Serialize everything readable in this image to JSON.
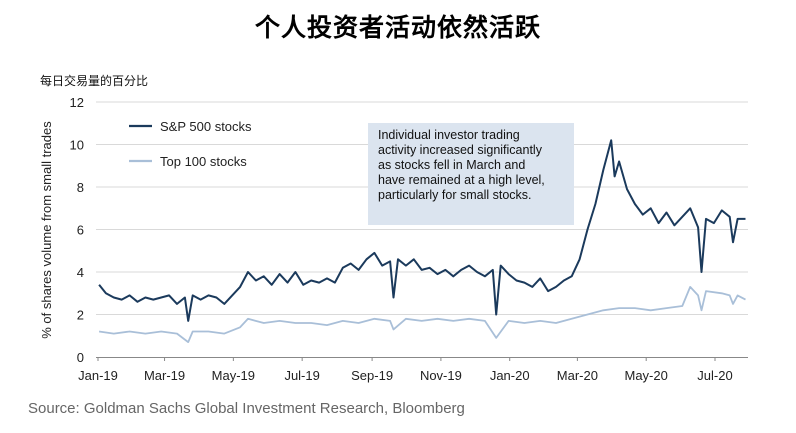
{
  "header": {
    "title": "个人投资者活动依然活跃",
    "subtitle": "每日交易量的百分比"
  },
  "footer": {
    "source": "Source: Goldman Sachs Global Investment Research, Bloomberg"
  },
  "annotation": {
    "lines": [
      "Individual investor trading",
      "activity  increased significantly",
      "as stocks fell in March and",
      "have remained at a high level,",
      "particularly for small stocks."
    ]
  },
  "chart_data": {
    "type": "line",
    "title": "",
    "ylabel": "% of shares volume from small trades",
    "xlabel": "",
    "ylim": [
      0,
      12
    ],
    "yticks": [
      0,
      2,
      4,
      6,
      8,
      10,
      12
    ],
    "xticks": [
      "Jan-19",
      "Mar-19",
      "May-19",
      "Jul-19",
      "Sep-19",
      "Nov-19",
      "Jan-20",
      "Mar-20",
      "May-20",
      "Jul-20"
    ],
    "grid": true,
    "legend_position": "top-left",
    "colors": {
      "sp500": "#1b3a5c",
      "top100": "#a9bfd8",
      "grid": "#d9d9d9",
      "annotation_bg": "#dbe4ef"
    },
    "series": [
      {
        "name": "S&P 500 stocks",
        "points": [
          [
            "2019-01-02",
            3.4
          ],
          [
            "2019-01-08",
            3.0
          ],
          [
            "2019-01-15",
            2.8
          ],
          [
            "2019-01-22",
            2.7
          ],
          [
            "2019-01-29",
            2.9
          ],
          [
            "2019-02-05",
            2.6
          ],
          [
            "2019-02-12",
            2.8
          ],
          [
            "2019-02-19",
            2.7
          ],
          [
            "2019-02-26",
            2.8
          ],
          [
            "2019-03-05",
            2.9
          ],
          [
            "2019-03-12",
            2.5
          ],
          [
            "2019-03-19",
            2.8
          ],
          [
            "2019-03-22",
            1.7
          ],
          [
            "2019-03-26",
            2.9
          ],
          [
            "2019-04-02",
            2.7
          ],
          [
            "2019-04-09",
            2.9
          ],
          [
            "2019-04-16",
            2.8
          ],
          [
            "2019-04-23",
            2.5
          ],
          [
            "2019-04-30",
            2.9
          ],
          [
            "2019-05-07",
            3.3
          ],
          [
            "2019-05-14",
            4.0
          ],
          [
            "2019-05-21",
            3.6
          ],
          [
            "2019-05-28",
            3.8
          ],
          [
            "2019-06-04",
            3.4
          ],
          [
            "2019-06-11",
            3.9
          ],
          [
            "2019-06-18",
            3.5
          ],
          [
            "2019-06-25",
            4.0
          ],
          [
            "2019-07-02",
            3.4
          ],
          [
            "2019-07-09",
            3.6
          ],
          [
            "2019-07-16",
            3.5
          ],
          [
            "2019-07-23",
            3.7
          ],
          [
            "2019-07-30",
            3.5
          ],
          [
            "2019-08-06",
            4.2
          ],
          [
            "2019-08-13",
            4.4
          ],
          [
            "2019-08-20",
            4.1
          ],
          [
            "2019-08-27",
            4.6
          ],
          [
            "2019-09-03",
            4.9
          ],
          [
            "2019-09-10",
            4.3
          ],
          [
            "2019-09-17",
            4.5
          ],
          [
            "2019-09-20",
            2.8
          ],
          [
            "2019-09-24",
            4.6
          ],
          [
            "2019-10-01",
            4.3
          ],
          [
            "2019-10-08",
            4.6
          ],
          [
            "2019-10-15",
            4.1
          ],
          [
            "2019-10-22",
            4.2
          ],
          [
            "2019-10-29",
            3.9
          ],
          [
            "2019-11-05",
            4.1
          ],
          [
            "2019-11-12",
            3.8
          ],
          [
            "2019-11-19",
            4.1
          ],
          [
            "2019-11-26",
            4.3
          ],
          [
            "2019-12-03",
            4.0
          ],
          [
            "2019-12-10",
            3.8
          ],
          [
            "2019-12-17",
            4.1
          ],
          [
            "2019-12-20",
            2.0
          ],
          [
            "2019-12-24",
            4.3
          ],
          [
            "2019-12-31",
            3.9
          ],
          [
            "2020-01-07",
            3.6
          ],
          [
            "2020-01-14",
            3.5
          ],
          [
            "2020-01-21",
            3.3
          ],
          [
            "2020-01-28",
            3.7
          ],
          [
            "2020-02-04",
            3.1
          ],
          [
            "2020-02-11",
            3.3
          ],
          [
            "2020-02-18",
            3.6
          ],
          [
            "2020-02-25",
            3.8
          ],
          [
            "2020-03-03",
            4.6
          ],
          [
            "2020-03-10",
            6.0
          ],
          [
            "2020-03-17",
            7.2
          ],
          [
            "2020-03-24",
            8.8
          ],
          [
            "2020-03-31",
            10.2
          ],
          [
            "2020-04-03",
            8.5
          ],
          [
            "2020-04-07",
            9.2
          ],
          [
            "2020-04-14",
            7.9
          ],
          [
            "2020-04-21",
            7.2
          ],
          [
            "2020-04-28",
            6.7
          ],
          [
            "2020-05-05",
            7.0
          ],
          [
            "2020-05-12",
            6.3
          ],
          [
            "2020-05-19",
            6.8
          ],
          [
            "2020-05-26",
            6.2
          ],
          [
            "2020-06-02",
            6.6
          ],
          [
            "2020-06-09",
            7.0
          ],
          [
            "2020-06-16",
            6.1
          ],
          [
            "2020-06-19",
            4.0
          ],
          [
            "2020-06-23",
            6.5
          ],
          [
            "2020-06-30",
            6.3
          ],
          [
            "2020-07-07",
            6.9
          ],
          [
            "2020-07-14",
            6.6
          ],
          [
            "2020-07-17",
            5.4
          ],
          [
            "2020-07-21",
            6.5
          ],
          [
            "2020-07-28",
            6.5
          ]
        ]
      },
      {
        "name": "Top 100 stocks",
        "points": [
          [
            "2019-01-02",
            1.2
          ],
          [
            "2019-01-15",
            1.1
          ],
          [
            "2019-01-29",
            1.2
          ],
          [
            "2019-02-12",
            1.1
          ],
          [
            "2019-02-26",
            1.2
          ],
          [
            "2019-03-12",
            1.1
          ],
          [
            "2019-03-22",
            0.7
          ],
          [
            "2019-03-26",
            1.2
          ],
          [
            "2019-04-09",
            1.2
          ],
          [
            "2019-04-23",
            1.1
          ],
          [
            "2019-05-07",
            1.4
          ],
          [
            "2019-05-14",
            1.8
          ],
          [
            "2019-05-28",
            1.6
          ],
          [
            "2019-06-11",
            1.7
          ],
          [
            "2019-06-25",
            1.6
          ],
          [
            "2019-07-09",
            1.6
          ],
          [
            "2019-07-23",
            1.5
          ],
          [
            "2019-08-06",
            1.7
          ],
          [
            "2019-08-20",
            1.6
          ],
          [
            "2019-09-03",
            1.8
          ],
          [
            "2019-09-17",
            1.7
          ],
          [
            "2019-09-20",
            1.3
          ],
          [
            "2019-10-01",
            1.8
          ],
          [
            "2019-10-15",
            1.7
          ],
          [
            "2019-10-29",
            1.8
          ],
          [
            "2019-11-12",
            1.7
          ],
          [
            "2019-11-26",
            1.8
          ],
          [
            "2019-12-10",
            1.7
          ],
          [
            "2019-12-20",
            0.9
          ],
          [
            "2019-12-31",
            1.7
          ],
          [
            "2020-01-14",
            1.6
          ],
          [
            "2020-01-28",
            1.7
          ],
          [
            "2020-02-11",
            1.6
          ],
          [
            "2020-02-25",
            1.8
          ],
          [
            "2020-03-10",
            2.0
          ],
          [
            "2020-03-24",
            2.2
          ],
          [
            "2020-04-07",
            2.3
          ],
          [
            "2020-04-21",
            2.3
          ],
          [
            "2020-05-05",
            2.2
          ],
          [
            "2020-05-19",
            2.3
          ],
          [
            "2020-06-02",
            2.4
          ],
          [
            "2020-06-09",
            3.3
          ],
          [
            "2020-06-16",
            2.9
          ],
          [
            "2020-06-19",
            2.2
          ],
          [
            "2020-06-23",
            3.1
          ],
          [
            "2020-07-07",
            3.0
          ],
          [
            "2020-07-14",
            2.9
          ],
          [
            "2020-07-17",
            2.5
          ],
          [
            "2020-07-21",
            2.9
          ],
          [
            "2020-07-28",
            2.7
          ]
        ]
      }
    ]
  }
}
